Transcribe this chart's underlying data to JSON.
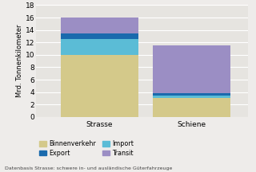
{
  "categories": [
    "Strasse",
    "Schiene"
  ],
  "segments": [
    "Binnenverkehr",
    "Import",
    "Export",
    "Transit"
  ],
  "values": {
    "Strasse": [
      10.0,
      2.5,
      1.0,
      2.5
    ],
    "Schiene": [
      3.0,
      0.5,
      0.3,
      7.7
    ]
  },
  "colors": [
    "#d4c98a",
    "#5bbcd6",
    "#1a6aad",
    "#9b8ec4"
  ],
  "ylabel": "Mrd. Tonnenkilometer",
  "ylim": [
    0,
    18
  ],
  "yticks": [
    0,
    2,
    4,
    6,
    8,
    10,
    12,
    14,
    16,
    18
  ],
  "background_color": "#eeecea",
  "plot_bg_color": "#e6e4e0",
  "footnote": "Datenbasis Strasse: schwere in- und ausländische Güterfahrzeuge",
  "bar_width": 0.55
}
